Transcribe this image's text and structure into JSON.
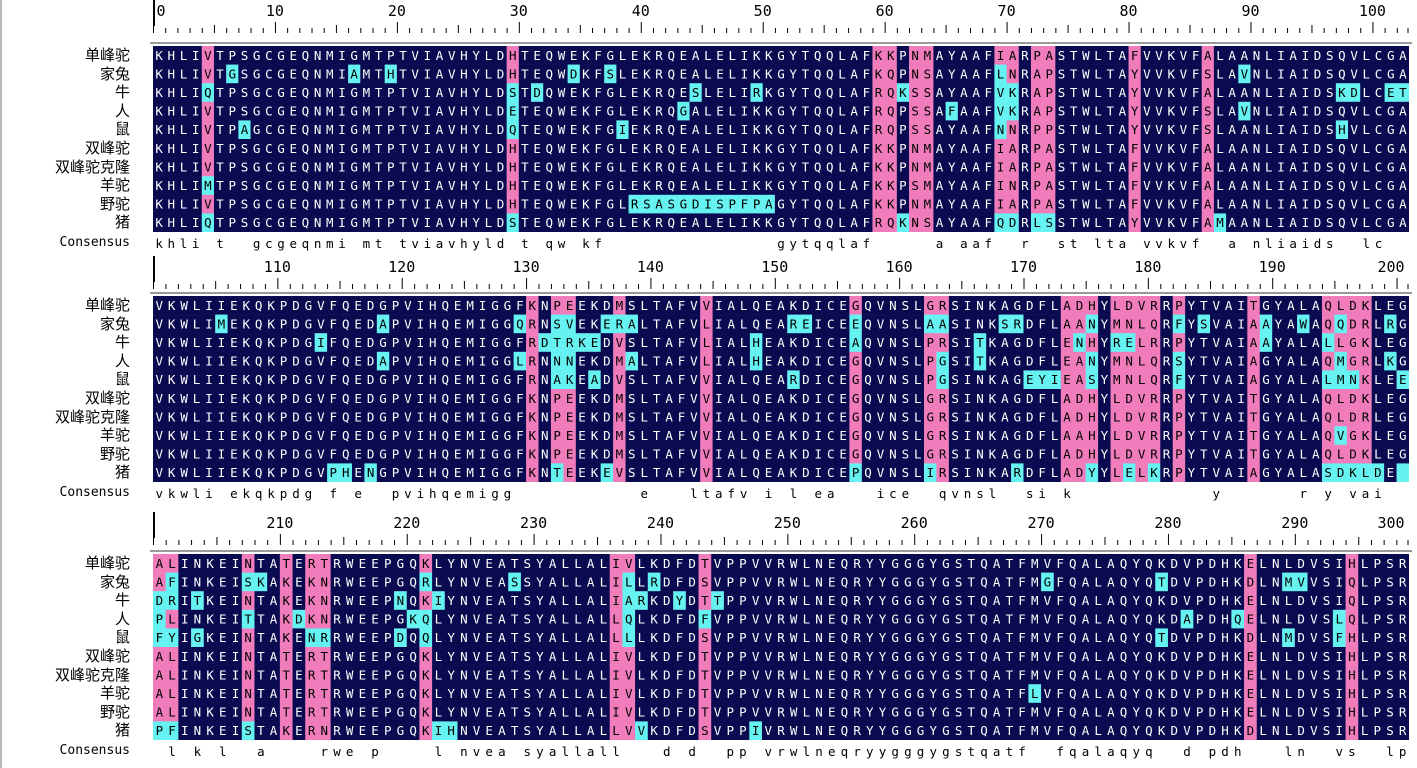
{
  "colors": {
    "identical_bg": "#0a0a50",
    "identical_fg": "#ffffff",
    "high_bg": "#f07cbc",
    "high_fg": "#000000",
    "low_bg": "#66f2f0",
    "low_fg": "#000000",
    "none_bg": "#ffffff",
    "none_fg": "#000000"
  },
  "consensus_label": "Consensus",
  "species": [
    "单峰驼",
    "家兔",
    "牛",
    "人",
    "鼠",
    "双峰驼",
    "双峰驼克隆",
    "羊驼",
    "野驼",
    "猪"
  ],
  "blocks": [
    {
      "ruler_labels": [
        "0",
        "10",
        "20",
        "30",
        "40",
        "50",
        "60",
        "70",
        "80",
        "90",
        "100"
      ],
      "sequences": [
        "KHLIVTPSGCGEQNMIGMTPTVIAVHYLDHTEQWEKFGLEKRQEALELIKKGYTQQLAFKKPNMAYAAFIARPASTWLTAFVVKVFALAANLIAIDSQVLCGA",
        "KHLIVTGSGCGEQNMIAMTHTVIAVHYLDHTEQWDKFSLEKRQEALELIKKGYTQQLAFKQPNSAYAAFLNRAPSTWLTAYVVKVFSLAVNLIAIDSQVLCGA",
        "KHLIQTPSGCGEQNMIGMTPTVIAVHYLDSTDQWEKFGLEKRQESLELIRKGYTQQLAFRQKSSAYAAFVKRAPSTWLTAYVVKVFALAANLIAIDSKDLCET",
        "KHLIVTPSGCGEQNMIGMTPTVIAVHYLDETEQWEKFGLEKRQGALELIKKGYTQQLAFRQPSSAFAAFVKRAPSTWLTAYVVKVFSLAVNLIAIDSQVLCGA",
        "KHLIVTPAGCGEQNMIGMTPTVIAVHYLDQTEQWEKFGIEKRQEALELIKKGYTQQLAFRQPSSAYAAFNNRPPSTWLTAYVVKVFSLAANLIAIDSHVLCGA",
        "KHLIVTPSGCGEQNMIGMTPTVIAVHYLDHTEQWEKFGLEKRQEALELIKKGYTQQLAFKKPNMAYAAFIARPASTWLTAFVVKVFALAANLIAIDSQVLCGA",
        "KHLIVTPSGCGEQNMIGMTPTVIAVHYLDHTEQWEKFGLEKRQEALELIKKGYTQQLAFKKPNMAYAAFIARPASTWLTAFVVKVFALAANLIAIDSQVLCGA",
        "KHLIMTPSGCGEQNMIGMTPTVIAVHYLDHTEQWEKFGLEKRQEALELIKKGYTQQLAFKKPSMAYAAFINRPASTWLTAFVVKVFALAANLIAIDSQVLCGA",
        "KHLIVTPSGCGEQNMIGMTPTVIAVHYLDHTEQWEKFGLRSASGDISPFPAGYTQQLAFKKPNMAYAAFIARPASTWLTAFVVKVFALAANLIAIDSQVLCGA",
        "KHLIQTPSGCGEQNMIGMTPTVIAVHYLDSTEQWEKFGLEKRQEALELIKKGYTQQLAFRQKNSAYAAFQDRLSSTWLTAYVVKVFAMAANLIAIDSQVLCGA"
      ],
      "consensus": "khli t  gcgeqnmi mt tviavhyld t qw kf              gytqqlaf     a aaf  r  st lta vvkvf  a nliaids  lc  "
    },
    {
      "ruler_labels": [
        "110",
        "120",
        "130",
        "140",
        "150",
        "160",
        "170",
        "180",
        "190",
        "200"
      ],
      "sequences": [
        "VKWLIIEKQKPDGVFQEDGPVIHQEMIGGFKNPEEKDMSLTAFVVIALQEAKDICEGQVNSLGRSINKAGDFLADHYLDVRRPYTVAITGYALAQLDKLEG",
        "VKWLIMEKQKPDGVFQEDAPVIHQEMIGGQRNSVEKERALTAFVLIALQEAREICEEQVNSLAASINKSRDFLAANYMNLQRFYSVAIAAYAWAQQDRLRG",
        "VKWLIIEKQKPDGIFQEDGPVIHQEMIGGFRDTRKEDVSLTAFVLIALHEAKDICEAQVNSLPRSITKAGDFLENHYRELRRPYTVAIAAYALALLGKLEG",
        "VKWLIIEKQKPDGVFQEDAPVIHQEMIGGLRNNNEKDMALTAFVLIALHEAKDICEGQVNSLPGSITKAGDFLEANYMNLQRSYTVAIAGYALAQMGRLKG",
        "VKWLIIEKQKPDGVFQEDGPVIHQEMIGGFRNAKEADVSLTAFVVIALQEARDICEGQVNSLPGSINKAGEYIEASYMNLQRFYTVAIAGYALALMNKLEE",
        "VKWLIIEKQKPDGVFQEDGPVIHQEMIGGFKNPEEKDMSLTAFVVIALQEAKDICEGQVNSLGRSINKAGDFLADHYLDVRRPYTVAITGYALAQLDKLEG",
        "VKWLIIEKQKPDGVFQEDGPVIHQEMIGGFKNPEEKDMSLTAFVVIALQEAKDICEGQVNSLGRSINKAGDFLADHYLDVRRPYTVAITGYALAQLDRLEG",
        "VKWLIIEKQKPDGVFQEDGPVIHQEMIGGFKNPEEKDMSLTAFVVIALQEAKDICEGQVNSLGRSINKAGDFLAAHYLDVRRPYTVAITGYALAQVGKLEG",
        "VKWLIIEKQKPDGVFQEDGPVIHQEMIGGFKNPEEKDMSLTAFVVIALQEAKDICEGQVNSLGRSINKAGDFLADHYLDVRRPYTVAITGYALAQLDKLEG",
        "VKWLIIEKQKPDGVPHENGPVIHQEMIGGFKNTEEKEVSLTAFVVIALQEAKDICEPQVNSLIRSINKARDFLADYYLELKRPYTVAIAGYALASDKLDE"
      ],
      "consensus": "vkwli ekqkpdg f e  pvihqemigg          e   ltafv i l ea   ice  qvnsl  si k           y      r y vai  ya a    l  "
    },
    {
      "ruler_labels": [
        "210",
        "220",
        "230",
        "240",
        "250",
        "260",
        "270",
        "280",
        "290",
        "300"
      ],
      "sequences": [
        "ALINKEINTATERTRWEEPGQKLYNVEATSYALLALIVLKDFDTVPPVVRWLNEQRYYGGGYGSTQATFMVFQALAQYQKDVPDHKELNLDVSIHLPSR",
        "AFINKEISKAKEKNRWEEPGQRLYNVEASSYALLALILLRDFDSVPPVVRWLNEQRYYGGGYGSTQATFMGFQALAQYQTDVPDHKDLNMVVSIQLPSR",
        "DRITKEINTAKEKNRWEEPNQKIYNVEATSYALLALIARKDYDTTPPVVRWLNEQRYYGGGYGSTQATFMVFQALAQYQKDVPDHKELNLDVSIQLPSR",
        "PLINKEITTAKDKNRWEEPGKQLYNVEATSYALLALLQLKDFDFVPPVVRWLNEQRYYGGGYGSTQATFMVFQALAQYQKDAPDHQELNLDVSLQLPSR",
        "FYIGKEINTAKENRRWEEPDQQLYNVEATSYALLALLLLKDFDSVPPVVRWLNEQRYYGGGYGSTQATFMVFQALAQYQTDVPDHKDLNMDVSFHLPSR",
        "ALINKEINTATERTRWEEPGQKLYNVEATSYALLALIVLKDFDTVPPVVRWLNEQRYYGGGYGSTQATFMVFQALAQYQKDVPDHKELNLDVSIHLPSR",
        "ALINKEINTATERTRWEEPGQKLYNVEATSYALLALIVLKDFDTVPPVVRWLNEQRYYGGGYGSTQATFMVFQALAQYQKDVPDHKELNLDVSIHLPSR",
        "ALINKEINTATERTRWEEPGQKLYNVEATSYALLALIVLKDFDTVPPVVRWLNEQRYYGGGYGSTQATFLVFQALAQYQKDVPDHKELNLDVSIHLPSR",
        "ALINKEINTATERTRWEEPGQKLYNVEATSYALLALIVLKDFDTVPPVVRWLNEQRYYGGGYGSTQATFMVFQALAQYQKDVPDHKELNLDVSIHLPSR",
        "PFINKEISTAKERNRWEEPGQKIHNVEATSYALLALLVVKDFDSVPPIVRWLNEQRYYGGGYGSTQATFMVFQALAQYQKDVPDHKDLNLDVSIHLPSR"
      ],
      "consensus": " l k l  a    rwe p    l nvea syallall   d d  pp vrwlneqryygggygstqatf  fqalaqyq  d pdh   ln  vs  lpsr"
    }
  ]
}
